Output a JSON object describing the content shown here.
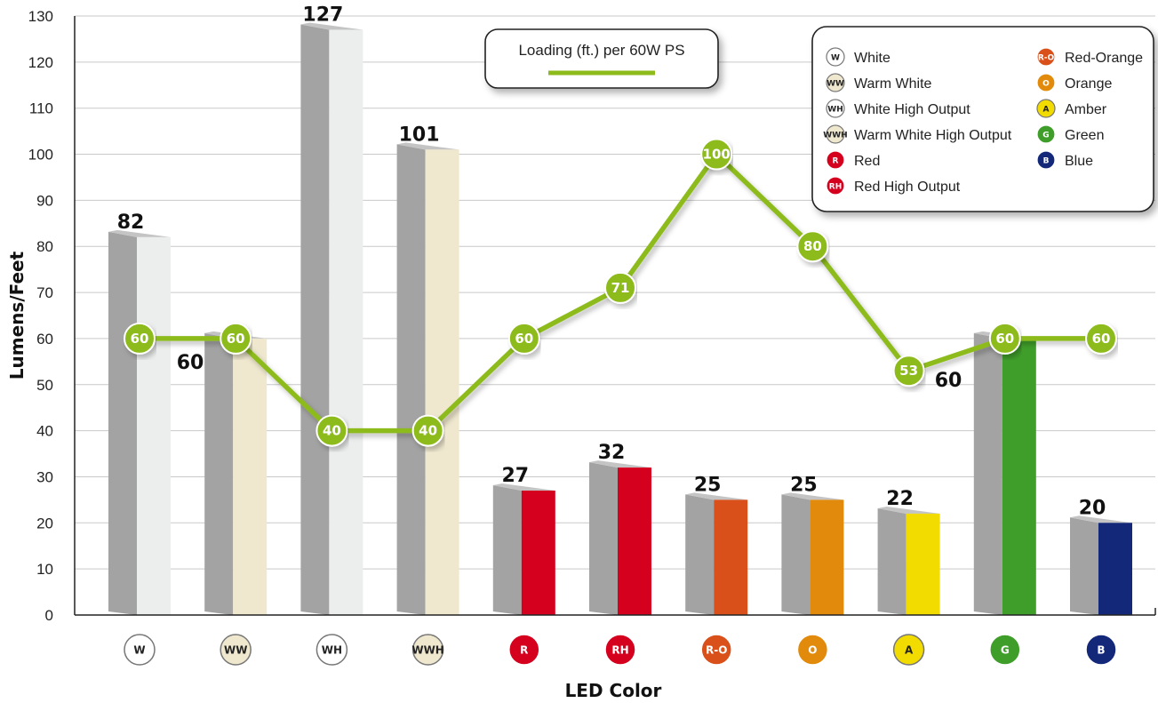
{
  "chart_data": {
    "type": "bar",
    "xlabel": "LED Color",
    "ylabel": "Lumens/Feet",
    "ylim": [
      0,
      130
    ],
    "ytick_step": 10,
    "grid": true,
    "categories": [
      "W",
      "WW",
      "WH",
      "WWH",
      "R",
      "RH",
      "R-O",
      "O",
      "A",
      "G",
      "B"
    ],
    "category_colors": [
      "#eceeed",
      "#efe8cf",
      "#eceeed",
      "#efe8cf",
      "#d4001e",
      "#d4001e",
      "#d9501b",
      "#e28a0b",
      "#f2dc00",
      "#3f9e2a",
      "#14287a"
    ],
    "series": [
      {
        "type": "bar",
        "values": [
          82,
          60,
          127,
          101,
          27,
          32,
          25,
          25,
          22,
          60,
          20
        ]
      },
      {
        "name": "Loading (ft.) per 60W PS",
        "type": "line",
        "color": "#8dbb1c",
        "values": [
          60,
          60,
          40,
          40,
          60,
          71,
          100,
          80,
          53,
          60,
          60
        ]
      }
    ],
    "legend": {
      "placement": "top-right",
      "items": [
        {
          "code": "W",
          "label": "White"
        },
        {
          "code": "WW",
          "label": "Warm White"
        },
        {
          "code": "WH",
          "label": "White High Output"
        },
        {
          "code": "WWH",
          "label": "Warm White High Output"
        },
        {
          "code": "R",
          "label": "Red"
        },
        {
          "code": "RH",
          "label": "Red High Output"
        },
        {
          "code": "R-O",
          "label": "Red-Orange"
        },
        {
          "code": "O",
          "label": "Orange"
        },
        {
          "code": "A",
          "label": "Amber"
        },
        {
          "code": "G",
          "label": "Green"
        },
        {
          "code": "B",
          "label": "Blue"
        }
      ]
    }
  }
}
